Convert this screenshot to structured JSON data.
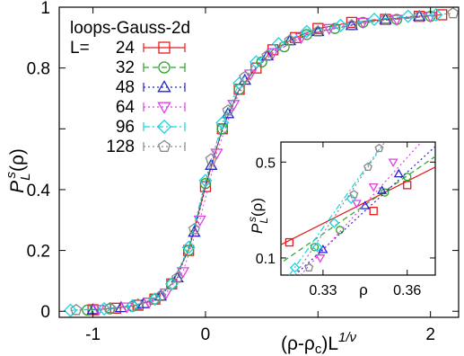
{
  "chart_data": [
    {
      "type": "scatter",
      "title": "",
      "xlabel": "(ρ-ρc)L^(1/ν)",
      "ylabel": "P_L^s(ρ)",
      "xlim": [
        -1.3,
        2.25
      ],
      "ylim": [
        -0.02,
        1.0
      ],
      "x_ticks": [
        -1,
        0,
        1,
        2
      ],
      "y_ticks": [
        0,
        0.2,
        0.4,
        0.6,
        0.8,
        1
      ],
      "x_tick_labels": [
        "-1",
        "0",
        "",
        "2"
      ],
      "y_tick_labels": [
        "0",
        "0.2",
        "0.4",
        "",
        "0.8",
        "1"
      ],
      "grid": false,
      "legend_placement": "top-left",
      "legend_title": "loops-Gauss-2d",
      "legend_prefix": "L=",
      "series": [
        {
          "name": "24",
          "color": "#e41a1c",
          "marker": "square",
          "line": "solid",
          "x": [
            -1.0,
            -0.8,
            -0.6,
            -0.45,
            -0.3,
            -0.15,
            0.0,
            0.15,
            0.3,
            0.45,
            0.6,
            0.8,
            1.0,
            1.3,
            1.6,
            1.9,
            2.1
          ],
          "y": [
            0.005,
            0.01,
            0.02,
            0.04,
            0.09,
            0.2,
            0.41,
            0.6,
            0.73,
            0.8,
            0.86,
            0.9,
            0.93,
            0.95,
            0.96,
            0.97,
            0.975
          ]
        },
        {
          "name": "32",
          "color": "#2ca02c",
          "marker": "circle",
          "line": "dashed",
          "x": [
            -1.05,
            -0.85,
            -0.65,
            -0.45,
            -0.3,
            -0.15,
            0.0,
            0.15,
            0.3,
            0.5,
            0.7,
            0.9,
            1.15,
            1.4,
            1.7,
            2.0
          ],
          "y": [
            0.004,
            0.008,
            0.016,
            0.04,
            0.09,
            0.2,
            0.42,
            0.6,
            0.73,
            0.82,
            0.87,
            0.91,
            0.93,
            0.95,
            0.96,
            0.97
          ]
        },
        {
          "name": "48",
          "color": "#2222cc",
          "marker": "triangle-up",
          "line": "dotted",
          "x": [
            -1.0,
            -0.75,
            -0.55,
            -0.4,
            -0.25,
            -0.1,
            0.05,
            0.2,
            0.35,
            0.55,
            0.75,
            1.0,
            1.3,
            1.6,
            1.9
          ],
          "y": [
            0.005,
            0.012,
            0.025,
            0.05,
            0.11,
            0.26,
            0.48,
            0.65,
            0.76,
            0.84,
            0.89,
            0.92,
            0.94,
            0.96,
            0.97
          ]
        },
        {
          "name": "64",
          "color": "#e040e0",
          "marker": "triangle-down",
          "line": "dotted",
          "x": [
            -0.95,
            -0.7,
            -0.5,
            -0.35,
            -0.2,
            -0.05,
            0.1,
            0.25,
            0.4,
            0.6,
            0.85,
            1.1,
            1.4,
            1.7,
            2.0
          ],
          "y": [
            0.006,
            0.014,
            0.03,
            0.06,
            0.13,
            0.3,
            0.52,
            0.68,
            0.78,
            0.85,
            0.9,
            0.93,
            0.95,
            0.96,
            0.97
          ]
        },
        {
          "name": "96",
          "color": "#19d3e0",
          "marker": "diamond",
          "line": "dashdot",
          "x": [
            -1.2,
            -0.9,
            -0.65,
            -0.45,
            -0.3,
            -0.15,
            0.0,
            0.15,
            0.3,
            0.45,
            0.65,
            0.9,
            1.2,
            1.5,
            1.8,
            2.05
          ],
          "y": [
            0.003,
            0.008,
            0.018,
            0.04,
            0.09,
            0.21,
            0.43,
            0.62,
            0.75,
            0.82,
            0.88,
            0.92,
            0.94,
            0.96,
            0.97,
            0.975
          ]
        },
        {
          "name": "128",
          "color": "#888888",
          "marker": "pentagon",
          "line": "dotted",
          "x": [
            -1.15,
            -0.85,
            -0.6,
            -0.4,
            -0.25,
            -0.1,
            0.05,
            0.2,
            0.35,
            0.55,
            0.75,
            1.0,
            1.3,
            1.6,
            1.9,
            2.2
          ],
          "y": [
            0.004,
            0.01,
            0.022,
            0.05,
            0.11,
            0.27,
            0.5,
            0.66,
            0.77,
            0.84,
            0.89,
            0.92,
            0.94,
            0.96,
            0.97,
            0.98
          ]
        }
      ]
    },
    {
      "type": "line",
      "title": "",
      "xlabel": "ρ",
      "ylabel": "P_L^s(ρ)",
      "xlim": [
        0.315,
        0.37
      ],
      "ylim": [
        0.075,
        0.7
      ],
      "y_scale": "log",
      "x_ticks": [
        0.33,
        0.36
      ],
      "y_ticks": [
        0.1,
        0.5
      ],
      "x_tick_labels": [
        "0.33",
        "0.36"
      ],
      "y_tick_labels": [
        "0.1",
        "0.5"
      ],
      "grid": false,
      "series": [
        {
          "name": "24",
          "color": "#e41a1c",
          "marker": "square",
          "line": "solid",
          "x": [
            0.318,
            0.348,
            0.36
          ],
          "y": [
            0.13,
            0.22,
            0.34
          ],
          "fit": [
            [
              0.315,
              0.125
            ],
            [
              0.37,
              0.46
            ]
          ]
        },
        {
          "name": "32",
          "color": "#2ca02c",
          "marker": "circle",
          "line": "dashed",
          "x": [
            0.327,
            0.336,
            0.352,
            0.36
          ],
          "y": [
            0.12,
            0.16,
            0.3,
            0.39
          ],
          "fit": [
            [
              0.316,
              0.095
            ],
            [
              0.37,
              0.55
            ]
          ]
        },
        {
          "name": "48",
          "color": "#2222cc",
          "marker": "triangle-up",
          "line": "dotted",
          "x": [
            0.33,
            0.345,
            0.351,
            0.357
          ],
          "y": [
            0.115,
            0.24,
            0.31,
            0.41
          ],
          "fit": [
            [
              0.32,
              0.07
            ],
            [
              0.37,
              0.65
            ]
          ]
        },
        {
          "name": "64",
          "color": "#e040e0",
          "marker": "triangle-down",
          "line": "dotted",
          "x": [
            0.329,
            0.342,
            0.348,
            0.355
          ],
          "y": [
            0.1,
            0.25,
            0.33,
            0.5
          ],
          "fit": [
            [
              0.322,
              0.07
            ],
            [
              0.365,
              0.7
            ]
          ]
        },
        {
          "name": "96",
          "color": "#19d3e0",
          "marker": "diamond",
          "line": "dashdot",
          "x": [
            0.32,
            0.328,
            0.334,
            0.34
          ],
          "y": [
            0.085,
            0.12,
            0.18,
            0.27
          ],
          "fit": [
            [
              0.318,
              0.075
            ],
            [
              0.35,
              0.62
            ]
          ]
        },
        {
          "name": "128",
          "color": "#888888",
          "marker": "pentagon",
          "line": "dotted",
          "x": [
            0.325,
            0.341,
            0.346,
            0.35
          ],
          "y": [
            0.085,
            0.29,
            0.46,
            0.63
          ],
          "fit": [
            [
              0.32,
              0.06
            ],
            [
              0.352,
              0.7
            ]
          ]
        }
      ]
    }
  ]
}
